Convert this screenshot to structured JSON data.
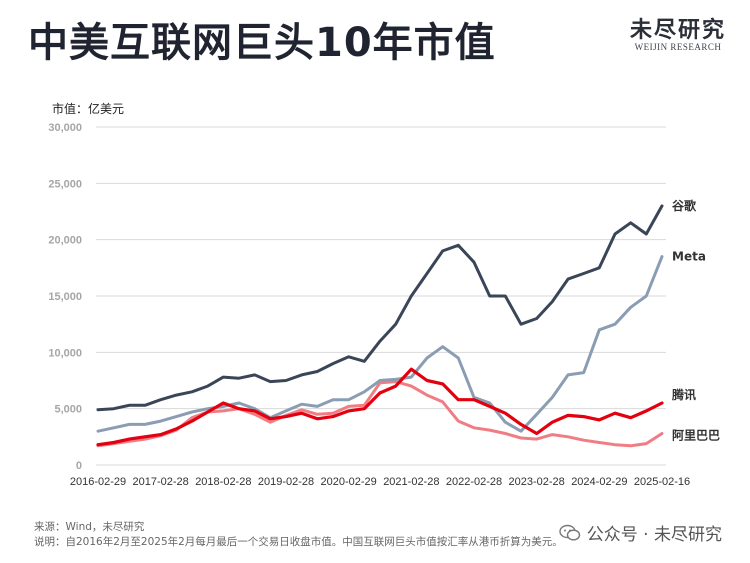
{
  "header": {
    "title": "中美互联网巨头10年市值",
    "brand_name": "未尽研究",
    "brand_sub": "WEIJIN RESEARCH"
  },
  "chart_data": {
    "type": "line",
    "unit": "市值：亿美元",
    "ylim": [
      0,
      30000
    ],
    "yticks": [
      "0",
      "5,000",
      "10,000",
      "15,000",
      "20,000",
      "25,000",
      "30,000"
    ],
    "xticks": [
      "2016-02-29",
      "2017-02-28",
      "2018-02-28",
      "2019-02-28",
      "2020-02-29",
      "2021-02-28",
      "2022-02-28",
      "2023-02-28",
      "2024-02-29",
      "2025-02-16"
    ],
    "x": [
      "2016-02",
      "2016-05",
      "2016-08",
      "2016-11",
      "2017-02",
      "2017-05",
      "2017-08",
      "2017-11",
      "2018-02",
      "2018-05",
      "2018-08",
      "2018-11",
      "2019-02",
      "2019-05",
      "2019-08",
      "2019-11",
      "2020-02",
      "2020-05",
      "2020-08",
      "2020-11",
      "2021-02",
      "2021-05",
      "2021-08",
      "2021-11",
      "2022-02",
      "2022-05",
      "2022-08",
      "2022-11",
      "2023-02",
      "2023-05",
      "2023-08",
      "2023-11",
      "2024-02",
      "2024-05",
      "2024-08",
      "2024-11",
      "2025-02"
    ],
    "series": [
      {
        "name": "谷歌",
        "color": "#3a4658",
        "values": [
          4900,
          5000,
          5300,
          5300,
          5800,
          6200,
          6500,
          7000,
          7800,
          7700,
          8000,
          7400,
          7500,
          8000,
          8300,
          9000,
          9600,
          9200,
          11000,
          12500,
          15000,
          17000,
          19000,
          19500,
          18000,
          15000,
          15000,
          12500,
          13000,
          14500,
          16500,
          17000,
          17500,
          20500,
          21500,
          20500,
          23000
        ]
      },
      {
        "name": "Meta",
        "color": "#8a9db3",
        "values": [
          3000,
          3300,
          3600,
          3600,
          3900,
          4300,
          4700,
          5000,
          5200,
          5500,
          5000,
          4200,
          4800,
          5400,
          5200,
          5800,
          5800,
          6500,
          7500,
          7600,
          7800,
          9500,
          10500,
          9500,
          6000,
          5500,
          3800,
          3000,
          4500,
          6000,
          8000,
          8200,
          12000,
          12500,
          14000,
          15000,
          18500
        ]
      },
      {
        "name": "腾讯",
        "color": "#e3000f",
        "values": [
          1800,
          2000,
          2300,
          2500,
          2700,
          3200,
          3900,
          4700,
          5500,
          5000,
          4800,
          4100,
          4300,
          4600,
          4100,
          4300,
          4800,
          5000,
          6400,
          7000,
          8500,
          7500,
          7200,
          5800,
          5800,
          5200,
          4600,
          3600,
          2800,
          3800,
          4400,
          4300,
          4000,
          4600,
          4200,
          4800,
          5500
        ]
      },
      {
        "name": "阿里巴巴",
        "color": "#f07d84",
        "values": [
          1700,
          1900,
          2100,
          2300,
          2600,
          3100,
          4200,
          4700,
          4800,
          5000,
          4500,
          3800,
          4400,
          4900,
          4500,
          4600,
          5200,
          5300,
          7300,
          7400,
          7000,
          6200,
          5600,
          3900,
          3300,
          3100,
          2800,
          2400,
          2300,
          2700,
          2500,
          2200,
          2000,
          1800,
          1700,
          1900,
          2800
        ]
      }
    ]
  },
  "footnotes": {
    "source": "来源：Wind，未尽研究",
    "note": "说明：自2016年2月至2025年2月每月最后一个交易日收盘市值。中国互联网巨头市值按汇率从港币折算为美元。"
  },
  "watermark": {
    "text": "公众号 · 未尽研究"
  }
}
